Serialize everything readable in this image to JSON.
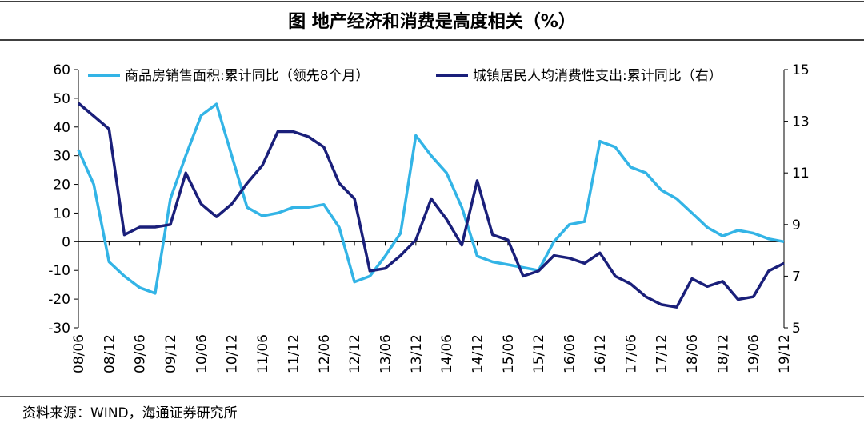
{
  "chart_data": {
    "type": "line",
    "title": "图  地产经济和消费是高度相关（%）",
    "source": "资料来源：WIND，海通证券研究所",
    "categories": [
      "08/06",
      null,
      "08/12",
      null,
      "09/06",
      null,
      "09/12",
      null,
      "10/06",
      null,
      "10/12",
      null,
      "11/06",
      null,
      "11/12",
      null,
      "12/06",
      null,
      "12/12",
      null,
      "13/06",
      null,
      "13/12",
      null,
      "14/06",
      null,
      "14/12",
      null,
      "15/06",
      null,
      "15/12",
      null,
      "16/06",
      null,
      "16/12",
      null,
      "17/06",
      null,
      "17/12",
      null,
      "18/06",
      null,
      "18/12",
      null,
      "19/06",
      null,
      "19/12"
    ],
    "series": [
      {
        "name": "商品房销售面积:累计同比（领先8个月）",
        "color": "#33b4e6",
        "axis": "y",
        "values": [
          32,
          20,
          -7,
          -12,
          -16,
          -18,
          15,
          30,
          44,
          48,
          30,
          12,
          9,
          10,
          12,
          12,
          13,
          5,
          -14,
          -12,
          -5,
          3,
          37,
          30,
          24,
          12,
          -5,
          -7,
          -8,
          -9,
          -10,
          0,
          6,
          7,
          35,
          33,
          26,
          24,
          18,
          15,
          10,
          5,
          2,
          4,
          3,
          1,
          0
        ]
      },
      {
        "name": "城镇居民人均消费性支出:累计同比（右）",
        "color": "#1a1f7a",
        "axis": "y2",
        "values": [
          13.7,
          13.2,
          12.7,
          8.6,
          8.9,
          8.9,
          9.0,
          11.0,
          9.8,
          9.3,
          9.8,
          10.6,
          11.3,
          12.6,
          12.6,
          12.4,
          12.0,
          10.6,
          10.0,
          7.2,
          7.3,
          7.8,
          8.4,
          10.0,
          9.2,
          8.2,
          10.7,
          8.6,
          8.4,
          7.0,
          7.2,
          7.8,
          7.7,
          7.5,
          7.9,
          7.0,
          6.7,
          6.2,
          5.9,
          5.8,
          6.9,
          6.6,
          6.8,
          6.1,
          6.2,
          7.2,
          7.5
        ]
      }
    ],
    "ylim": [
      -30,
      60
    ],
    "yticks": [
      -30,
      -20,
      -10,
      0,
      10,
      20,
      30,
      40,
      50,
      60
    ],
    "y2lim": [
      5,
      15
    ],
    "y2ticks": [
      5,
      7,
      9,
      11,
      13,
      15
    ]
  }
}
